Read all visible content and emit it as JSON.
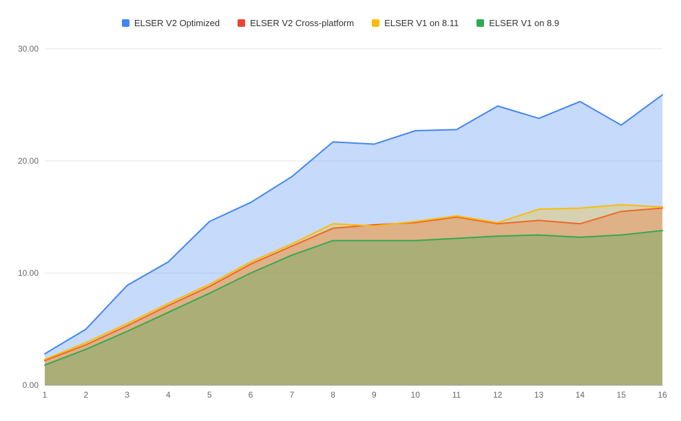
{
  "chart_data": {
    "type": "area",
    "title": "",
    "xlabel": "",
    "ylabel": "",
    "x": [
      1,
      2,
      3,
      4,
      5,
      6,
      7,
      8,
      9,
      10,
      11,
      12,
      13,
      14,
      15,
      16
    ],
    "ylim": [
      0,
      30
    ],
    "yticks": [
      {
        "value": 0,
        "label": "0.00"
      },
      {
        "value": 10,
        "label": "10.00"
      },
      {
        "value": 20,
        "label": "20.00"
      },
      {
        "value": 30,
        "label": "30.00"
      }
    ],
    "grid": true,
    "legend_position": "top",
    "fill_opacity": 0.3,
    "axis_text_color": "#666666",
    "gridline_color": "#e6e6e6",
    "baseline_color": "#999999",
    "series": [
      {
        "name": "ELSER V2 Optimized",
        "color": "#4285F4",
        "values": [
          2.8,
          5.0,
          8.9,
          11.0,
          14.6,
          16.3,
          18.6,
          21.7,
          21.5,
          22.7,
          22.8,
          24.9,
          23.8,
          25.3,
          23.2,
          25.9
        ]
      },
      {
        "name": "ELSER V2 Cross-platform",
        "color": "#EA4335",
        "values": [
          2.2,
          3.6,
          5.3,
          7.1,
          8.8,
          10.8,
          12.4,
          14.0,
          14.3,
          14.5,
          15.0,
          14.4,
          14.7,
          14.4,
          15.5,
          15.8
        ]
      },
      {
        "name": "ELSER V1 on 8.11",
        "color": "#FBBC04",
        "values": [
          2.3,
          3.8,
          5.5,
          7.3,
          9.0,
          11.0,
          12.6,
          14.4,
          14.2,
          14.6,
          15.1,
          14.5,
          15.7,
          15.8,
          16.1,
          15.9
        ]
      },
      {
        "name": "ELSER V1 on 8.9",
        "color": "#34A853",
        "values": [
          1.8,
          3.2,
          4.8,
          6.5,
          8.2,
          10.0,
          11.6,
          12.9,
          12.9,
          12.9,
          13.1,
          13.3,
          13.4,
          13.2,
          13.4,
          13.8
        ]
      }
    ]
  }
}
